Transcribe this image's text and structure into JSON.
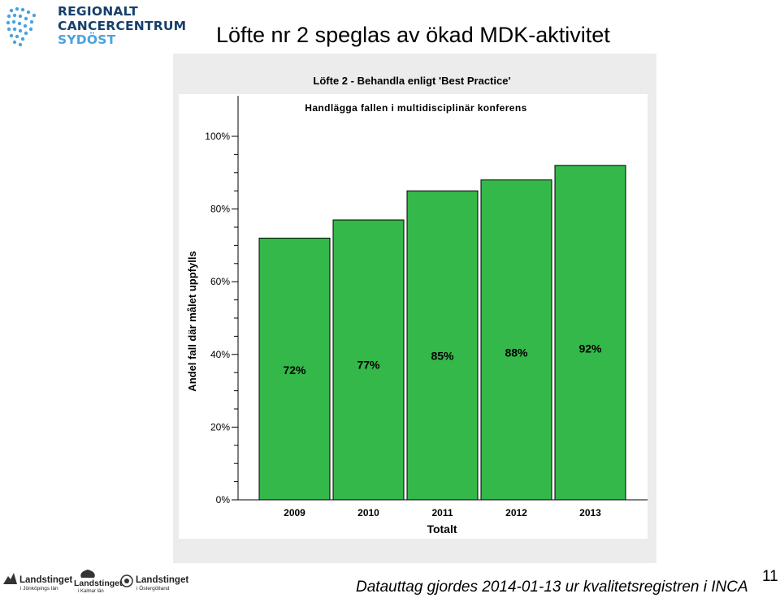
{
  "logo": {
    "line1": "REGIONALT",
    "line2": "CANCERCENTRUM",
    "line3": "SYDÖST"
  },
  "slide_title": "Löfte nr 2 speglas av ökad MDK-aktivitet",
  "chart_data": {
    "type": "bar",
    "title": "Löfte 2 - Behandla enligt 'Best Practice'",
    "subtitle": "Handlägga fallen i multidisciplinär konferens",
    "ylabel": "Andel fall där målet uppfylls",
    "xlabel": "Totalt",
    "categories": [
      "2009",
      "2010",
      "2011",
      "2012",
      "2013"
    ],
    "values": [
      72,
      77,
      85,
      88,
      92
    ],
    "data_labels": [
      "72%",
      "77%",
      "85%",
      "88%",
      "92%"
    ],
    "ylim": [
      0,
      100
    ],
    "y_ticks": [
      0,
      20,
      40,
      60,
      80,
      100
    ],
    "y_tick_labels": [
      "0%",
      "20%",
      "40%",
      "60%",
      "80%",
      "100%"
    ],
    "bar_color": "#33b849",
    "grid": false,
    "legend": "none"
  },
  "footer": {
    "logos": [
      {
        "name": "Landstinget",
        "sub": "i Jönköpings län"
      },
      {
        "name": "Landstinget",
        "sub": "i Kalmar län"
      },
      {
        "name": "Landstinget",
        "sub": "i Östergötland"
      }
    ],
    "source_text": "Datauttag gjordes 2014-01-13 ur kvalitetsregistren i INCA",
    "page_number": "11"
  }
}
